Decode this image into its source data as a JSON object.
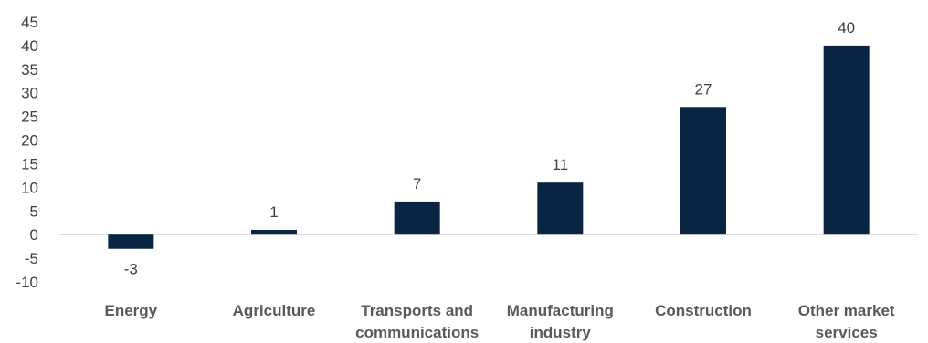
{
  "chart_data": {
    "type": "bar",
    "title": "",
    "xlabel": "",
    "ylabel": "",
    "categories": [
      [
        "Energy"
      ],
      [
        "Agriculture"
      ],
      [
        "Transports and",
        "communications"
      ],
      [
        "Manufacturing",
        "industry"
      ],
      [
        "Construction"
      ],
      [
        "Other market",
        "services"
      ]
    ],
    "values": [
      -3,
      1,
      7,
      11,
      27,
      40
    ],
    "data_labels": [
      "-3",
      "1",
      "7",
      "11",
      "27",
      "40"
    ],
    "ylim": [
      -10,
      45
    ],
    "yticks": [
      45,
      40,
      35,
      30,
      25,
      20,
      15,
      10,
      5,
      0,
      -5,
      -10
    ],
    "ytick_labels": [
      "45",
      "40",
      "35",
      "30",
      "25",
      "20",
      "15",
      "10",
      "5",
      "0",
      "-5",
      "-10"
    ],
    "grid": false,
    "legend": "none",
    "bar_color": "#0a2444",
    "axis_color": "#d9d9d9"
  }
}
